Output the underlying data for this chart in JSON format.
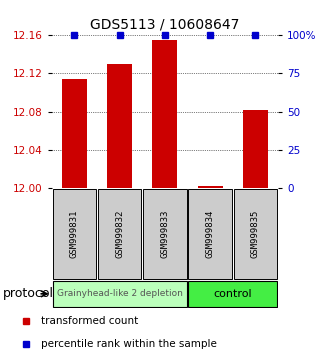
{
  "title": "GDS5113 / 10608647",
  "samples": [
    "GSM999831",
    "GSM999832",
    "GSM999833",
    "GSM999834",
    "GSM999835"
  ],
  "red_values": [
    12.114,
    12.13,
    12.155,
    12.002,
    12.082
  ],
  "blue_values": [
    100,
    100,
    100,
    100,
    100
  ],
  "ylim_left": [
    12.0,
    12.16
  ],
  "ylim_right": [
    0,
    100
  ],
  "yticks_left": [
    12,
    12.04,
    12.08,
    12.12,
    12.16
  ],
  "yticks_right": [
    0,
    25,
    50,
    75,
    100
  ],
  "ytick_labels_right": [
    "0",
    "25",
    "50",
    "75",
    "100%"
  ],
  "groups": [
    {
      "label": "Grainyhead-like 2 depletion",
      "samples_idx": [
        0,
        1,
        2
      ],
      "color": "#bbffbb"
    },
    {
      "label": "control",
      "samples_idx": [
        3,
        4
      ],
      "color": "#44ee44"
    }
  ],
  "protocol_label": "protocol",
  "legend_red": "transformed count",
  "legend_blue": "percentile rank within the sample",
  "red_color": "#cc0000",
  "blue_color": "#0000cc",
  "bar_width": 0.55,
  "background_color": "#ffffff",
  "sample_box_color": "#cccccc"
}
